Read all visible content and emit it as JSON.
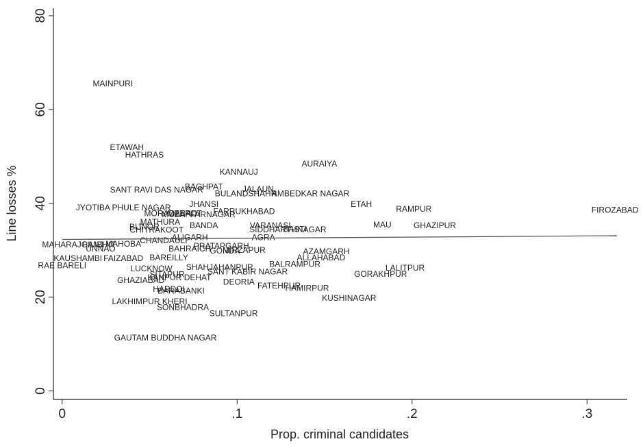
{
  "chart_data": {
    "type": "scatter",
    "xlabel": "Prop. criminal candidates",
    "ylabel": "Line losses %",
    "xlim": [
      -0.005,
      0.323
    ],
    "ylim": [
      -1.8,
      81.6
    ],
    "xticks": [
      0,
      {
        "value": 0.1,
        "label": ".1"
      },
      {
        "value": 0.2,
        "label": ".2"
      },
      {
        "value": 0.3,
        "label": ".3"
      }
    ],
    "yticks": [
      0,
      20,
      40,
      60,
      80
    ],
    "color": "#333333",
    "labels": [
      "MAINPURI",
      "ETAWAH",
      "HATHRAS",
      "AURAIYA",
      "KANNAUJ",
      "SANT RAVI DAS NAGAR",
      "BAGHPAT",
      "JALAUN",
      "BULANDSHAHR",
      "AMBEDKAR NAGAR",
      "ETAH",
      "RAMPUR",
      "FIROZABAD",
      "JYOTIBA PHULE NAGAR",
      "JHANSI",
      "FARRUKHABAD",
      "MORADABAD",
      "MEERUT",
      "MUZAFFARNAGAR",
      "MATHURA",
      "BANDA",
      "VARANASI",
      "SIDDHARTHNAGAR",
      "BASTI",
      "MAU",
      "GHAZIPUR",
      "BIJNOR",
      "CHITRAKOOT",
      "AGRA",
      "ALIGARH",
      "CHANDAULI",
      "PRATAPGARH",
      "BAHRAICH",
      "GONDA",
      "MIRZAPUR",
      "MAHARAJGANJ",
      "PILIBHIT",
      "MAHOBA",
      "UNNAO",
      "KAUSHAMBI",
      "FAIZABAD",
      "BAREILLY",
      "AZAMGARH",
      "ALLAHABAD",
      "BALRAMPUR",
      "RAE BARELI",
      "LUCKNOW",
      "SHAHJAHANPUR",
      "SANT KABIR NAGAR",
      "LALITPUR",
      "GORAKHPUR",
      "SITAPUR",
      "KANPUR DEHAT",
      "GHAZIABAD",
      "DEORIA",
      "FATEHPUR",
      "HAMIRPUR",
      "HARDOI",
      "BARABANKI",
      "KUSHINAGAR",
      "LAKHIMPUR KHERI",
      "SONBHADRA",
      "SULTANPUR",
      "GAUTAM BUDDHA NAGAR"
    ],
    "x": [
      0.029,
      0.037,
      0.047,
      0.147,
      0.101,
      0.054,
      0.081,
      0.112,
      0.105,
      0.142,
      0.171,
      0.201,
      0.316,
      0.035,
      0.081,
      0.104,
      0.062,
      0.07,
      0.078,
      0.056,
      0.081,
      0.119,
      0.129,
      0.133,
      0.183,
      0.213,
      0.047,
      0.054,
      0.115,
      0.073,
      0.058,
      0.091,
      0.073,
      0.093,
      0.104,
      0.006,
      0.021,
      0.035,
      0.022,
      0.009,
      0.035,
      0.061,
      0.151,
      0.148,
      0.133,
      0.0,
      0.051,
      0.09,
      0.106,
      0.196,
      0.182,
      0.06,
      0.067,
      0.045,
      0.101,
      0.124,
      0.14,
      0.061,
      0.068,
      0.164,
      0.05,
      0.069,
      0.098,
      0.059
    ],
    "values": [
      65.4,
      51.8,
      50.2,
      48.3,
      46.6,
      42.8,
      43.4,
      42.9,
      42.0,
      42.0,
      39.7,
      38.7,
      38.5,
      39.0,
      39.7,
      38.2,
      37.7,
      37.7,
      37.5,
      35.9,
      35.2,
      35.2,
      34.3,
      34.4,
      35.3,
      35.2,
      34.9,
      34.2,
      32.6,
      32.6,
      32.0,
      30.8,
      30.2,
      29.8,
      29.9,
      31.1,
      31.1,
      31.2,
      30.2,
      28.2,
      28.2,
      28.3,
      29.6,
      28.3,
      26.9,
      26.6,
      26.0,
      26.3,
      25.3,
      26.1,
      24.8,
      24.7,
      24.1,
      23.5,
      23.1,
      22.3,
      21.8,
      21.6,
      21.2,
      19.7,
      19.0,
      17.7,
      16.4,
      11.2
    ],
    "fit": {
      "x": [
        0,
        0.317
      ],
      "values": [
        32.3,
        33.1
      ]
    }
  }
}
